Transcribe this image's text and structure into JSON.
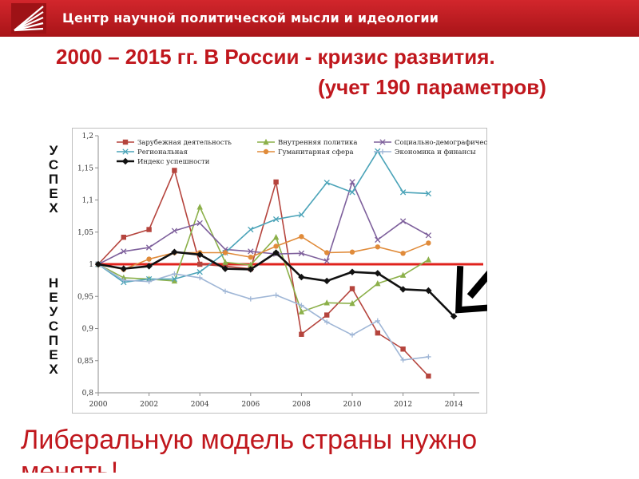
{
  "header": {
    "title": "Центр научной политической мысли и идеологии",
    "background": "#b51a1f"
  },
  "headline": {
    "line1": "2000 – 2015 гг.  В России - кризис развития.",
    "line2": "(учет 190 параметров)",
    "color": "#c0171d"
  },
  "side_labels": {
    "success": [
      "У",
      "С",
      "П",
      "Е",
      "Х"
    ],
    "failure": [
      "Н",
      "Е",
      "У",
      "С",
      "П",
      "Е",
      "Х"
    ]
  },
  "footer": {
    "text": "Либеральную модель страны нужно",
    "text_cut": "менять!"
  },
  "chart_data": {
    "type": "line",
    "x": [
      2000,
      2001,
      2002,
      2003,
      2004,
      2005,
      2006,
      2007,
      2008,
      2009,
      2010,
      2011,
      2012,
      2013,
      2014
    ],
    "xticks": [
      "2000",
      "2002",
      "2004",
      "2006",
      "2008",
      "2010",
      "2012",
      "2014"
    ],
    "yticks": [
      "0,8",
      "0,85",
      "0,9",
      "0,95",
      "1",
      "1,05",
      "1,1",
      "1,15",
      "1,2"
    ],
    "ylim": [
      0.8,
      1.2
    ],
    "xlim": [
      2000,
      2015
    ],
    "reference_line": 1.0,
    "reference_color": "#e0221c",
    "legend_position": "top",
    "grid": false,
    "series": [
      {
        "name": "Зарубежная деятельность",
        "color": "#b5443d",
        "marker": "square",
        "values": [
          1.0,
          1.042,
          1.054,
          1.146,
          1.0,
          0.997,
          0.993,
          1.128,
          0.891,
          0.921,
          0.962,
          0.893,
          0.868,
          0.826,
          null
        ]
      },
      {
        "name": "Внутренняя политика",
        "color": "#8cb04a",
        "marker": "triangle",
        "values": [
          1.0,
          0.979,
          0.977,
          0.974,
          1.089,
          1.003,
          0.999,
          1.042,
          0.926,
          0.94,
          0.939,
          0.97,
          0.983,
          1.007,
          null
        ]
      },
      {
        "name": "Социально-демографическая",
        "color": "#7e609c",
        "marker": "x",
        "values": [
          1.0,
          1.02,
          1.026,
          1.052,
          1.064,
          1.023,
          1.02,
          1.016,
          1.017,
          1.005,
          1.128,
          1.038,
          1.067,
          1.045,
          null
        ]
      },
      {
        "name": "Региональная",
        "color": "#4aa3b8",
        "marker": "x",
        "values": [
          1.0,
          0.972,
          0.977,
          0.977,
          0.988,
          1.018,
          1.054,
          1.07,
          1.077,
          1.127,
          1.112,
          1.176,
          1.112,
          1.11,
          null
        ]
      },
      {
        "name": "Гуманитарная сфера",
        "color": "#e08b3a",
        "marker": "circle",
        "values": [
          1.0,
          0.992,
          1.008,
          1.018,
          1.018,
          1.018,
          1.011,
          1.028,
          1.043,
          1.018,
          1.019,
          1.027,
          1.017,
          1.033,
          null
        ]
      },
      {
        "name": "Экономика и финансы",
        "color": "#9fb6d6",
        "marker": "plus",
        "values": [
          1.0,
          0.975,
          0.973,
          0.985,
          0.979,
          0.958,
          0.946,
          0.952,
          0.936,
          0.91,
          0.89,
          0.912,
          0.851,
          0.856,
          null
        ]
      },
      {
        "name": "Индекс успешности",
        "color": "#111111",
        "marker": "diamond",
        "values": [
          1.0,
          0.993,
          0.997,
          1.019,
          1.015,
          0.993,
          0.992,
          1.018,
          0.98,
          0.974,
          0.988,
          0.986,
          0.961,
          0.959,
          0.919
        ]
      }
    ],
    "arrow_color": "#000000"
  }
}
